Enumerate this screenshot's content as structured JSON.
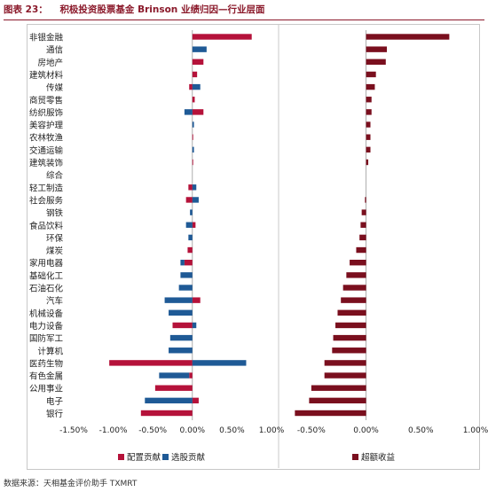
{
  "header": {
    "label": "图表 23：",
    "title": "积极投资股票基金 Brinson 业绩归因—行业层面"
  },
  "source": "数据来源：天相基金评价助手 TXMRT",
  "colors": {
    "allocation": "#b5123a",
    "selection": "#1f5a96",
    "excess": "#7a0f1e",
    "title": "#8b1a2b"
  },
  "chart_data": [
    {
      "type": "bar",
      "orientation": "horizontal",
      "categories": [
        "非银金融",
        "通信",
        "房地产",
        "建筑材料",
        "传媒",
        "商贸零售",
        "纺织服饰",
        "美容护理",
        "农林牧渔",
        "交通运输",
        "建筑装饰",
        "综合",
        "轻工制造",
        "社会服务",
        "钢铁",
        "食品饮料",
        "环保",
        "煤炭",
        "家用电器",
        "基础化工",
        "石油石化",
        "汽车",
        "机械设备",
        "电力设备",
        "国防军工",
        "计算机",
        "医药生物",
        "有色金属",
        "公用事业",
        "电子",
        "银行"
      ],
      "series": [
        {
          "name": "配置贡献",
          "values": [
            0.75,
            0.0,
            0.14,
            0.06,
            -0.04,
            0.03,
            0.14,
            0.0,
            0.01,
            0.0,
            0.01,
            0.0,
            -0.05,
            -0.08,
            0.0,
            0.04,
            0.0,
            -0.06,
            -0.1,
            0.0,
            0.0,
            0.1,
            0.0,
            -0.25,
            0.0,
            0.0,
            -1.05,
            -0.04,
            -0.47,
            0.08,
            -0.65
          ]
        },
        {
          "name": "选股贡献",
          "values": [
            0.0,
            0.18,
            0.0,
            0.0,
            0.1,
            0.0,
            -0.1,
            0.02,
            0.0,
            0.02,
            0.0,
            0.0,
            0.05,
            0.08,
            -0.03,
            -0.08,
            -0.05,
            0.0,
            -0.05,
            -0.15,
            -0.17,
            -0.35,
            -0.3,
            0.05,
            -0.28,
            -0.3,
            0.68,
            -0.38,
            0.0,
            -0.6,
            0.0
          ]
        }
      ],
      "xlim": [
        -1.5,
        1.0
      ],
      "xticks": [
        "-1.50%",
        "-1.00%",
        "-0.50%",
        "0.00%",
        "0.50%",
        "1.00%"
      ],
      "xtick_values": [
        -1.5,
        -1.0,
        -0.5,
        0.0,
        0.5,
        1.0
      ],
      "legend": "bottom"
    },
    {
      "type": "bar",
      "orientation": "horizontal",
      "categories": [
        "非银金融",
        "通信",
        "房地产",
        "建筑材料",
        "传媒",
        "商贸零售",
        "纺织服饰",
        "美容护理",
        "农林牧渔",
        "交通运输",
        "建筑装饰",
        "综合",
        "轻工制造",
        "社会服务",
        "钢铁",
        "食品饮料",
        "环保",
        "煤炭",
        "家用电器",
        "基础化工",
        "石油石化",
        "汽车",
        "机械设备",
        "电力设备",
        "国防军工",
        "计算机",
        "医药生物",
        "有色金属",
        "公用事业",
        "电子",
        "银行"
      ],
      "series": [
        {
          "name": "超额收益",
          "values": [
            0.76,
            0.19,
            0.18,
            0.09,
            0.08,
            0.05,
            0.05,
            0.04,
            0.04,
            0.04,
            0.02,
            0.0,
            0.0,
            -0.01,
            -0.04,
            -0.05,
            -0.06,
            -0.09,
            -0.15,
            -0.18,
            -0.21,
            -0.23,
            -0.26,
            -0.28,
            -0.3,
            -0.31,
            -0.38,
            -0.38,
            -0.5,
            -0.52,
            -0.65
          ]
        }
      ],
      "xlim": [
        -0.75,
        1.0
      ],
      "xticks": [
        "-0.50%",
        "0.00%",
        "0.50%",
        "1.00%"
      ],
      "xtick_values": [
        -0.5,
        0.0,
        0.5,
        1.0
      ],
      "legend": "bottom"
    }
  ]
}
